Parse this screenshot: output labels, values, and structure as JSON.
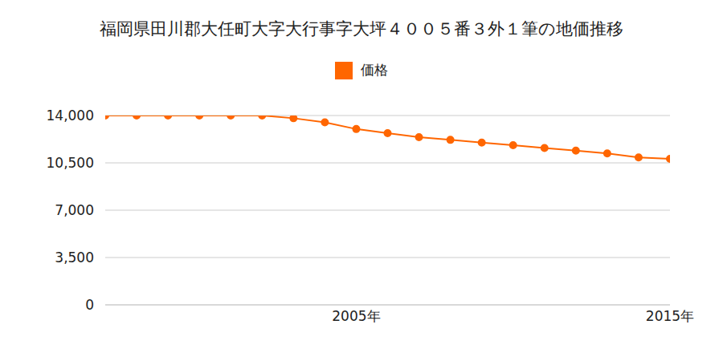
{
  "chart_data": {
    "type": "line",
    "title": "福岡県田川郡大任町大字大行事字大坪４００５番３外１筆の地価推移",
    "x": [
      1997,
      1998,
      1999,
      2000,
      2001,
      2002,
      2003,
      2004,
      2005,
      2006,
      2007,
      2008,
      2009,
      2010,
      2011,
      2012,
      2013,
      2014,
      2015
    ],
    "series": [
      {
        "name": "価格",
        "color": "#ff6600",
        "marker": "circle",
        "values": [
          14000,
          14000,
          14000,
          14000,
          14000,
          14000,
          13800,
          13500,
          13000,
          12700,
          12400,
          12200,
          12000,
          11800,
          11600,
          11400,
          11200,
          10900,
          10800
        ]
      }
    ],
    "xlim": [
      1997,
      2015
    ],
    "xticks": [
      {
        "value": 2005,
        "label": "2005年"
      },
      {
        "value": 2015,
        "label": "2015年"
      }
    ],
    "ylim": [
      0,
      14000
    ],
    "yticks": [
      0,
      {
        "value": 3500,
        "label": "3,500"
      },
      {
        "value": 7000,
        "label": "7,000"
      },
      {
        "value": 10500,
        "label": "10,500"
      },
      {
        "value": 14000,
        "label": "14,000"
      }
    ],
    "grid": true,
    "legend": "top"
  }
}
